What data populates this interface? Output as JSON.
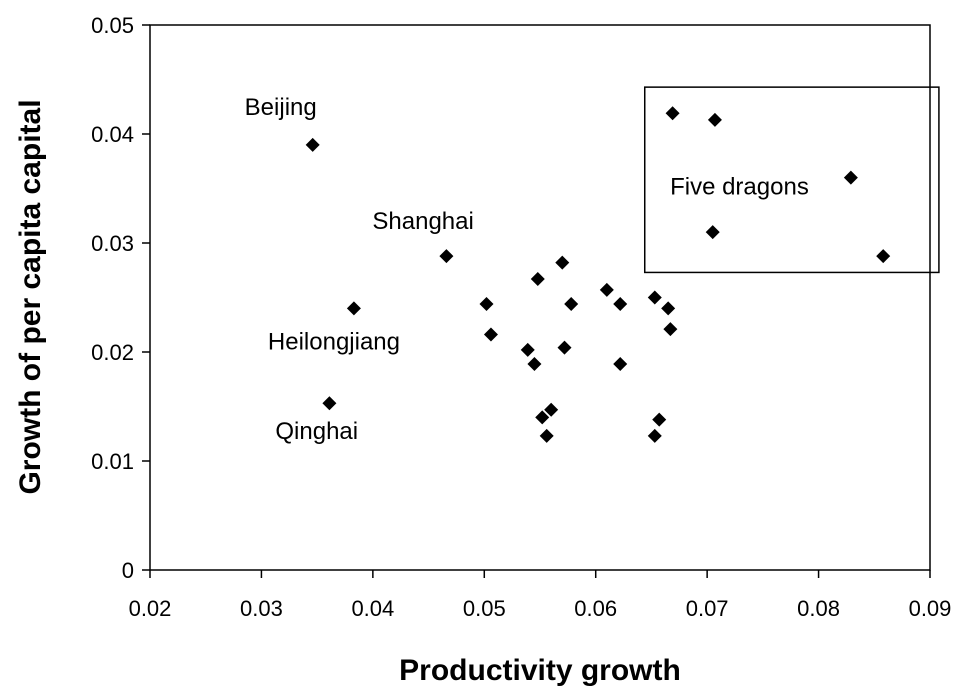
{
  "chart_data": {
    "type": "scatter",
    "title": "",
    "xlabel": "Productivity growth",
    "ylabel": "Growth of per capita capital",
    "xlim": [
      0.02,
      0.09
    ],
    "ylim": [
      0,
      0.05
    ],
    "x_ticks": [
      "0.02",
      "0.03",
      "0.04",
      "0.05",
      "0.06",
      "0.07",
      "0.08",
      "0.09"
    ],
    "y_ticks": [
      "0",
      "0.01",
      "0.02",
      "0.03",
      "0.04",
      "0.05"
    ],
    "grid": false,
    "legend": "none",
    "marker_color": "#000000",
    "marker": "diamond",
    "points": [
      {
        "x": 0.0346,
        "y": 0.039
      },
      {
        "x": 0.0466,
        "y": 0.0288
      },
      {
        "x": 0.0383,
        "y": 0.024
      },
      {
        "x": 0.0361,
        "y": 0.0153
      },
      {
        "x": 0.0502,
        "y": 0.0244
      },
      {
        "x": 0.0506,
        "y": 0.0216
      },
      {
        "x": 0.0539,
        "y": 0.0202
      },
      {
        "x": 0.0545,
        "y": 0.0189
      },
      {
        "x": 0.0548,
        "y": 0.0267
      },
      {
        "x": 0.057,
        "y": 0.0282
      },
      {
        "x": 0.0572,
        "y": 0.0204
      },
      {
        "x": 0.0578,
        "y": 0.0244
      },
      {
        "x": 0.0552,
        "y": 0.014
      },
      {
        "x": 0.056,
        "y": 0.0147
      },
      {
        "x": 0.0556,
        "y": 0.0123
      },
      {
        "x": 0.061,
        "y": 0.0257
      },
      {
        "x": 0.0622,
        "y": 0.0244
      },
      {
        "x": 0.0622,
        "y": 0.0189
      },
      {
        "x": 0.0653,
        "y": 0.025
      },
      {
        "x": 0.0665,
        "y": 0.024
      },
      {
        "x": 0.0667,
        "y": 0.0221
      },
      {
        "x": 0.0657,
        "y": 0.0138
      },
      {
        "x": 0.0653,
        "y": 0.0123
      },
      {
        "x": 0.0669,
        "y": 0.0419
      },
      {
        "x": 0.0707,
        "y": 0.0413
      },
      {
        "x": 0.0705,
        "y": 0.031
      },
      {
        "x": 0.0829,
        "y": 0.036
      },
      {
        "x": 0.0858,
        "y": 0.0288
      }
    ],
    "annotations": [
      {
        "text": "Beijing",
        "x": 0.0346,
        "y": 0.039
      },
      {
        "text": "Shanghai",
        "x": 0.0466,
        "y": 0.0288
      },
      {
        "text": "Heilongjiang",
        "x": 0.0383,
        "y": 0.024
      },
      {
        "text": "Qinghai",
        "x": 0.0361,
        "y": 0.0153
      },
      {
        "text": "Five dragons",
        "x": 0.0752,
        "y": 0.0352
      }
    ],
    "highlight_box": {
      "x_range": [
        0.0644,
        0.0908
      ],
      "y_range": [
        0.0273,
        0.0443
      ]
    }
  }
}
